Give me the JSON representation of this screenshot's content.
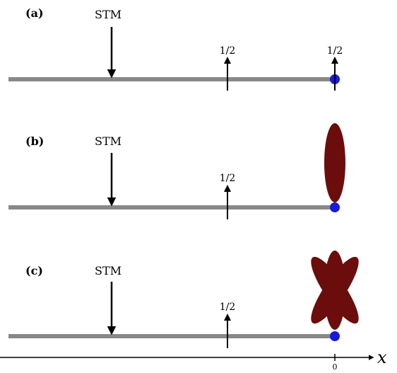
{
  "panels": [
    {
      "label": "(a)",
      "stm": "STM",
      "spins": [
        "1/2",
        "1/2"
      ]
    },
    {
      "label": "(b)",
      "stm": "STM",
      "spins": [
        "1/2"
      ]
    },
    {
      "label": "(c)",
      "stm": "STM",
      "spins": [
        "1/2"
      ]
    }
  ],
  "axis": {
    "variable": "x",
    "tick": "0"
  },
  "colors": {
    "chain": "#888888",
    "impurity": "#1a1adb",
    "orbital": "#6b0d0d",
    "arrow": "#000000"
  }
}
